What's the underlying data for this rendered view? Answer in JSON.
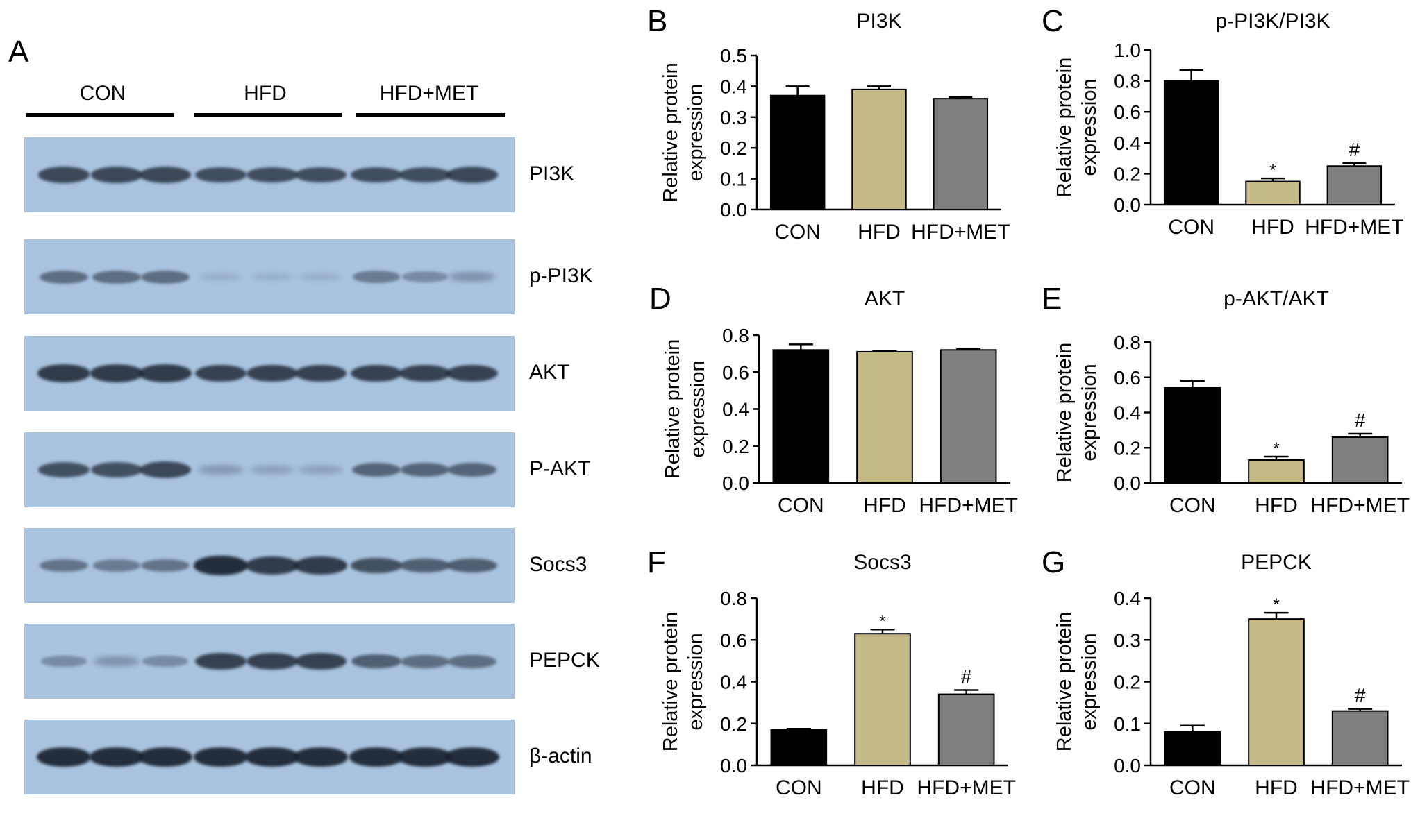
{
  "figure": {
    "panel_a": {
      "letter": "A",
      "groups": [
        "CON",
        "HFD",
        "HFD+MET"
      ],
      "blots": [
        {
          "label": "PI3K",
          "intensity": [
            0.75,
            0.75,
            0.75,
            0.72,
            0.72,
            0.72,
            0.72,
            0.72,
            0.75
          ]
        },
        {
          "label": "p-PI3K",
          "intensity": [
            0.5,
            0.5,
            0.5,
            0.05,
            0.05,
            0.05,
            0.4,
            0.3,
            0.25
          ]
        },
        {
          "label": "AKT",
          "intensity": [
            0.85,
            0.85,
            0.85,
            0.8,
            0.8,
            0.8,
            0.8,
            0.8,
            0.8
          ]
        },
        {
          "label": "P-AKT",
          "intensity": [
            0.7,
            0.7,
            0.75,
            0.2,
            0.15,
            0.15,
            0.55,
            0.55,
            0.55
          ]
        },
        {
          "label": "Socs3",
          "intensity": [
            0.45,
            0.4,
            0.45,
            0.95,
            0.85,
            0.85,
            0.7,
            0.6,
            0.6
          ]
        },
        {
          "label": "PEPCK",
          "intensity": [
            0.3,
            0.25,
            0.3,
            0.8,
            0.8,
            0.8,
            0.6,
            0.5,
            0.5
          ]
        },
        {
          "label": "β-actin",
          "intensity": [
            0.95,
            0.95,
            0.95,
            0.95,
            0.95,
            0.95,
            0.95,
            0.95,
            0.95
          ]
        }
      ]
    }
  },
  "colors": {
    "CON": "#000000",
    "HFD": "#c5b988",
    "HFD+MET": "#7f7f7f",
    "blot_bg": "#a9c3df",
    "band": "#1a2230"
  },
  "chart_data": [
    {
      "letter": "B",
      "type": "bar",
      "title": "PI3K",
      "ylabel": "Relative protein expression",
      "categories": [
        "CON",
        "HFD",
        "HFD+MET"
      ],
      "values": [
        0.37,
        0.39,
        0.36
      ],
      "errors": [
        0.03,
        0.01,
        0.005
      ],
      "ylim": [
        0,
        0.5
      ],
      "yticks": [
        "0.0",
        "0.1",
        "0.2",
        "0.3",
        "0.4",
        "0.5"
      ],
      "annotations": [
        "",
        "",
        ""
      ]
    },
    {
      "letter": "C",
      "type": "bar",
      "title": "p-PI3K/PI3K",
      "ylabel": "Relative protein expression",
      "categories": [
        "CON",
        "HFD",
        "HFD+MET"
      ],
      "values": [
        0.8,
        0.15,
        0.25
      ],
      "errors": [
        0.07,
        0.02,
        0.02
      ],
      "ylim": [
        0,
        1.0
      ],
      "yticks": [
        "0.0",
        "0.2",
        "0.4",
        "0.6",
        "0.8",
        "1.0"
      ],
      "annotations": [
        "",
        "*",
        "#"
      ]
    },
    {
      "letter": "D",
      "type": "bar",
      "title": "AKT",
      "ylabel": "Relative protein expression",
      "categories": [
        "CON",
        "HFD",
        "HFD+MET"
      ],
      "values": [
        0.72,
        0.71,
        0.72
      ],
      "errors": [
        0.03,
        0.005,
        0.005
      ],
      "ylim": [
        0,
        0.8
      ],
      "yticks": [
        "0.0",
        "0.2",
        "0.4",
        "0.6",
        "0.8"
      ],
      "annotations": [
        "",
        "",
        ""
      ]
    },
    {
      "letter": "E",
      "type": "bar",
      "title": "p-AKT/AKT",
      "ylabel": "Relative protein expression",
      "categories": [
        "CON",
        "HFD",
        "HFD+MET"
      ],
      "values": [
        0.54,
        0.13,
        0.26
      ],
      "errors": [
        0.04,
        0.02,
        0.02
      ],
      "ylim": [
        0,
        0.8
      ],
      "yticks": [
        "0.0",
        "0.2",
        "0.4",
        "0.6",
        "0.8"
      ],
      "annotations": [
        "",
        "*",
        "#"
      ]
    },
    {
      "letter": "F",
      "type": "bar",
      "title": "Socs3",
      "ylabel": "Relative protein expression",
      "categories": [
        "CON",
        "HFD",
        "HFD+MET"
      ],
      "values": [
        0.17,
        0.63,
        0.34
      ],
      "errors": [
        0.005,
        0.02,
        0.02
      ],
      "ylim": [
        0,
        0.8
      ],
      "yticks": [
        "0.0",
        "0.2",
        "0.4",
        "0.6",
        "0.8"
      ],
      "annotations": [
        "",
        "*",
        "#"
      ]
    },
    {
      "letter": "G",
      "type": "bar",
      "title": "PEPCK",
      "ylabel": "Relative protein expression",
      "categories": [
        "CON",
        "HFD",
        "HFD+MET"
      ],
      "values": [
        0.08,
        0.35,
        0.13
      ],
      "errors": [
        0.015,
        0.015,
        0.005
      ],
      "ylim": [
        0,
        0.4
      ],
      "yticks": [
        "0.0",
        "0.1",
        "0.2",
        "0.3",
        "0.4"
      ],
      "annotations": [
        "",
        "*",
        "#"
      ]
    }
  ]
}
